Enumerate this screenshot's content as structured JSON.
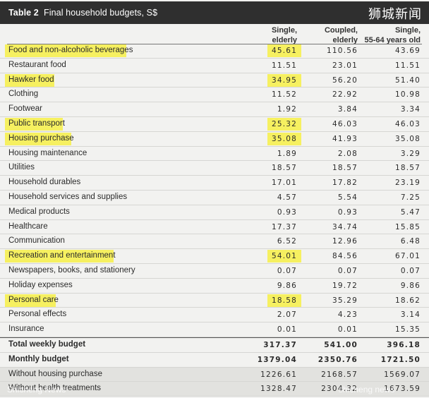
{
  "title": {
    "table_no": "Table 2",
    "text": "Final household budgets, S$"
  },
  "watermark_top": "狮城新闻",
  "columns": [
    {
      "line1": "Single,",
      "line2": "elderly"
    },
    {
      "line1": "Coupled,",
      "line2": "elderly"
    },
    {
      "line1": "Single,",
      "line2": "55-64 years old"
    }
  ],
  "rows": [
    {
      "label": "Food and non-alcoholic beverages",
      "v1": "45.61",
      "v2": "110.56",
      "v3": "43.69",
      "hl": true,
      "hlw": 172
    },
    {
      "label": "Restaurant food",
      "v1": "11.51",
      "v2": "23.01",
      "v3": "11.51",
      "hl": false
    },
    {
      "label": "Hawker food",
      "v1": "34.95",
      "v2": "56.20",
      "v3": "51.40",
      "hl": true,
      "hlw": 70
    },
    {
      "label": "Clothing",
      "v1": "11.52",
      "v2": "22.92",
      "v3": "10.98",
      "hl": false
    },
    {
      "label": "Footwear",
      "v1": "1.92",
      "v2": "3.84",
      "v3": "3.34",
      "hl": false
    },
    {
      "label": "Public transport",
      "v1": "25.32",
      "v2": "46.03",
      "v3": "46.03",
      "hl": true,
      "hlw": 82
    },
    {
      "label": "Housing purchase",
      "v1": "35.08",
      "v2": "41.93",
      "v3": "35.08",
      "hl": true,
      "hlw": 94
    },
    {
      "label": "Housing maintenance",
      "v1": "1.89",
      "v2": "2.08",
      "v3": "3.29",
      "hl": false
    },
    {
      "label": "Utilities",
      "v1": "18.57",
      "v2": "18.57",
      "v3": "18.57",
      "hl": false
    },
    {
      "label": "Household durables",
      "v1": "17.01",
      "v2": "17.82",
      "v3": "23.19",
      "hl": false
    },
    {
      "label": "Household services and supplies",
      "v1": "4.57",
      "v2": "5.54",
      "v3": "7.25",
      "hl": false
    },
    {
      "label": "Medical products",
      "v1": "0.93",
      "v2": "0.93",
      "v3": "5.47",
      "hl": false
    },
    {
      "label": "Healthcare",
      "v1": "17.37",
      "v2": "34.74",
      "v3": "15.85",
      "hl": false
    },
    {
      "label": "Communication",
      "v1": "6.52",
      "v2": "12.96",
      "v3": "6.48",
      "hl": false
    },
    {
      "label": "Recreation and entertainment",
      "v1": "54.01",
      "v2": "84.56",
      "v3": "67.01",
      "hl": true,
      "hlw": 154
    },
    {
      "label": "Newspapers, books, and stationery",
      "v1": "0.07",
      "v2": "0.07",
      "v3": "0.07",
      "hl": false
    },
    {
      "label": "Holiday expenses",
      "v1": "9.86",
      "v2": "19.72",
      "v3": "9.86",
      "hl": false
    },
    {
      "label": "Personal care",
      "v1": "18.58",
      "v2": "35.29",
      "v3": "18.62",
      "hl": true,
      "hlw": 72
    },
    {
      "label": "Personal effects",
      "v1": "2.07",
      "v2": "4.23",
      "v3": "3.14",
      "hl": false
    },
    {
      "label": "Insurance",
      "v1": "0.01",
      "v2": "0.01",
      "v3": "15.35",
      "hl": false
    }
  ],
  "totals": [
    {
      "label": "Total weekly budget",
      "v1": "317.37",
      "v2": "541.00",
      "v3": "396.18",
      "bold": true,
      "shaded": false
    },
    {
      "label": "Monthly budget",
      "v1": "1379.04",
      "v2": "2350.76",
      "v3": "1721.50",
      "bold": true,
      "shaded": false
    },
    {
      "label": "Without housing purchase",
      "v1": "1226.61",
      "v2": "2168.57",
      "v3": "1569.07",
      "bold": false,
      "shaded": true
    },
    {
      "label": "Without health treatments",
      "v1": "1328.47",
      "v2": "2304.32",
      "v3": "1673.59",
      "bold": false,
      "shaded": true
    }
  ],
  "watermark_bottom": "Shicheng News",
  "watermark_bottom2": "shicheng news",
  "colors": {
    "highlight": "#f6f060",
    "title_bar": "#2f2f2f",
    "background": "#f2f2f0"
  }
}
